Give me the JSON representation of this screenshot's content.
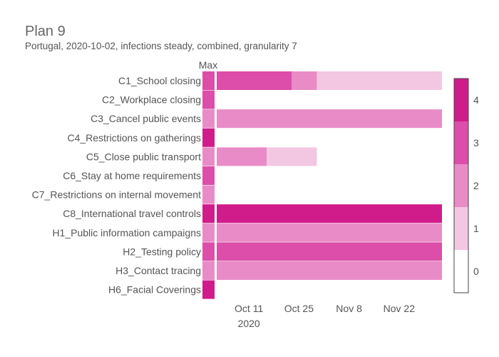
{
  "chart_data": {
    "type": "heatmap",
    "title": "Plan 9",
    "subtitle": "Portugal, 2020-10-02, infections steady, combined, granularity 7",
    "max_column_label": "Max",
    "x_range": [
      "2020-10-02",
      "2020-12-04"
    ],
    "x_ticks": [
      {
        "date": "2020-10-11",
        "label": "Oct 11",
        "sublabel": "2020"
      },
      {
        "date": "2020-10-25",
        "label": "Oct 25",
        "sublabel": ""
      },
      {
        "date": "2020-11-08",
        "label": "Nov 8",
        "sublabel": ""
      },
      {
        "date": "2020-11-22",
        "label": "Nov 22",
        "sublabel": ""
      }
    ],
    "colorscale": {
      "levels": [
        0,
        1,
        2,
        3,
        4
      ],
      "colors": [
        "#ffffff",
        "#f3c6e2",
        "#e98bc6",
        "#dc4ea9",
        "#d01c8b"
      ],
      "tick_labels": [
        "0",
        "1",
        "2",
        "3",
        "4"
      ],
      "range": [
        -0.5,
        4.5
      ]
    },
    "rows": [
      {
        "label": "C1_School closing",
        "max": 3,
        "segments": [
          {
            "start": "2020-10-02",
            "end": "2020-10-23",
            "value": 3
          },
          {
            "start": "2020-10-23",
            "end": "2020-10-30",
            "value": 2
          },
          {
            "start": "2020-10-30",
            "end": "2020-12-04",
            "value": 1
          }
        ]
      },
      {
        "label": "C2_Workplace closing",
        "max": 3,
        "segments": []
      },
      {
        "label": "C3_Cancel public events",
        "max": 2,
        "segments": [
          {
            "start": "2020-10-02",
            "end": "2020-12-04",
            "value": 2
          }
        ]
      },
      {
        "label": "C4_Restrictions on gatherings",
        "max": 4,
        "segments": []
      },
      {
        "label": "C5_Close public transport",
        "max": 2,
        "segments": [
          {
            "start": "2020-10-02",
            "end": "2020-10-16",
            "value": 2
          },
          {
            "start": "2020-10-16",
            "end": "2020-10-30",
            "value": 1
          }
        ]
      },
      {
        "label": "C6_Stay at home requirements",
        "max": 3,
        "segments": []
      },
      {
        "label": "C7_Restrictions on internal movement",
        "max": 2,
        "segments": []
      },
      {
        "label": "C8_International travel controls",
        "max": 4,
        "segments": [
          {
            "start": "2020-10-02",
            "end": "2020-12-04",
            "value": 4
          }
        ]
      },
      {
        "label": "H1_Public information campaigns",
        "max": 2,
        "segments": [
          {
            "start": "2020-10-02",
            "end": "2020-12-04",
            "value": 2
          }
        ]
      },
      {
        "label": "H2_Testing policy",
        "max": 3,
        "segments": [
          {
            "start": "2020-10-02",
            "end": "2020-12-04",
            "value": 3
          }
        ]
      },
      {
        "label": "H3_Contact tracing",
        "max": 2,
        "segments": [
          {
            "start": "2020-10-02",
            "end": "2020-12-04",
            "value": 2
          }
        ]
      },
      {
        "label": "H6_Facial Coverings",
        "max": 4,
        "segments": []
      }
    ]
  }
}
